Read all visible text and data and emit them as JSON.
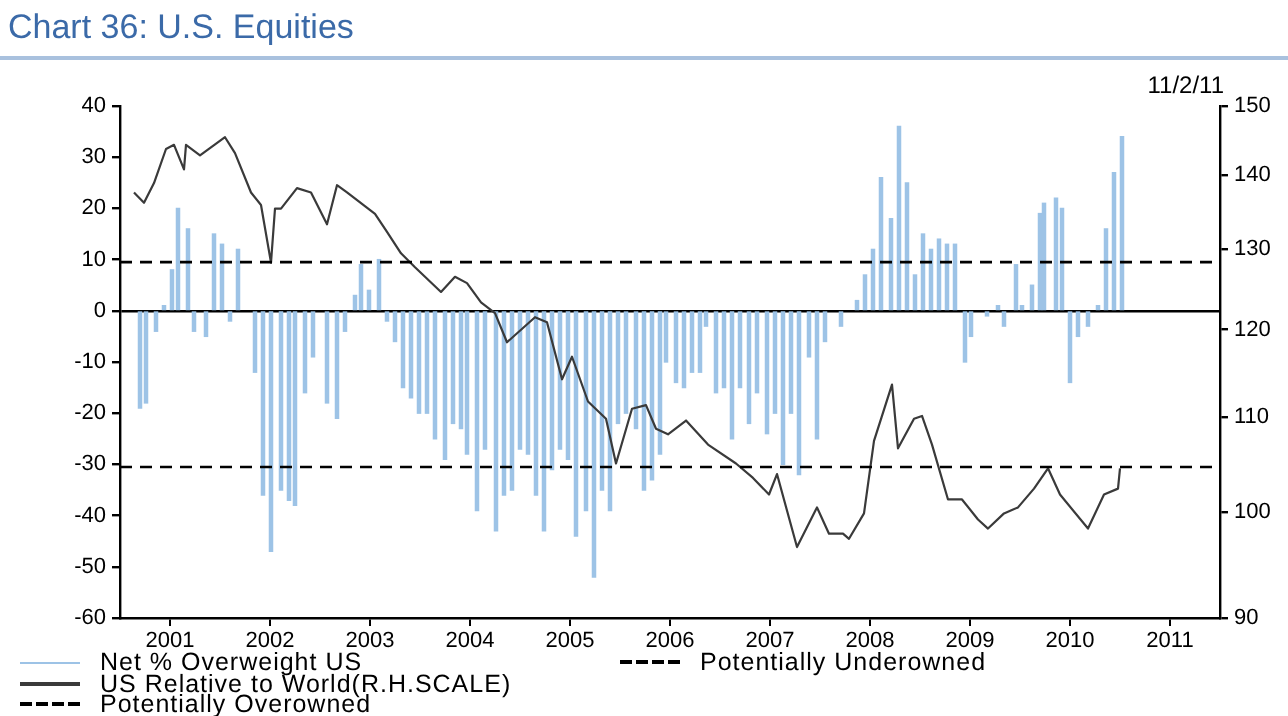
{
  "chart_data": {
    "type": "bar",
    "title": "Chart 36: U.S. Equities",
    "annotations": [
      "11/2/11"
    ],
    "xlim": [
      2001,
      2012
    ],
    "xticks": [
      {
        "value": 2001.5,
        "label": "2001"
      },
      {
        "value": 2002.5,
        "label": "2002"
      },
      {
        "value": 2003.5,
        "label": "2003"
      },
      {
        "value": 2004.5,
        "label": "2004"
      },
      {
        "value": 2005.5,
        "label": "2005"
      },
      {
        "value": 2006.5,
        "label": "2006"
      },
      {
        "value": 2007.5,
        "label": "2007"
      },
      {
        "value": 2008.5,
        "label": "2008"
      },
      {
        "value": 2009.5,
        "label": "2009"
      },
      {
        "value": 2010.5,
        "label": "2010"
      },
      {
        "value": 2011.5,
        "label": "2011"
      }
    ],
    "ylim": [
      -60,
      40
    ],
    "yticks": [
      -60,
      -50,
      -40,
      -30,
      -20,
      -10,
      0,
      10,
      20,
      30,
      40
    ],
    "y2lim": [
      90,
      150
    ],
    "y2ticks": [
      90,
      100,
      110,
      120,
      130,
      140,
      150
    ],
    "log": "y2",
    "grid": false,
    "legend": "bottom",
    "series": [
      {
        "name": "Net % Overweight US",
        "color": "#9dc3e6",
        "x": [
          2001.2,
          2001.26,
          2001.36,
          2001.44,
          2001.52,
          2001.58,
          2001.68,
          2001.74,
          2001.86,
          2001.94,
          2002.02,
          2002.1,
          2002.18,
          2002.35,
          2002.43,
          2002.51,
          2002.61,
          2002.69,
          2002.75,
          2002.85,
          2002.93,
          2003.07,
          2003.17,
          2003.25,
          2003.35,
          2003.41,
          2003.49,
          2003.59,
          2003.67,
          2003.75,
          2003.83,
          2003.91,
          2003.99,
          2004.07,
          2004.15,
          2004.25,
          2004.33,
          2004.41,
          2004.47,
          2004.57,
          2004.65,
          2004.76,
          2004.84,
          2004.92,
          2005.0,
          2005.08,
          2005.16,
          2005.24,
          2005.32,
          2005.4,
          2005.48,
          2005.56,
          2005.66,
          2005.74,
          2005.82,
          2005.9,
          2005.98,
          2006.06,
          2006.16,
          2006.24,
          2006.32,
          2006.4,
          2006.46,
          2006.56,
          2006.64,
          2006.72,
          2006.8,
          2006.86,
          2006.96,
          2007.04,
          2007.12,
          2007.2,
          2007.29,
          2007.37,
          2007.47,
          2007.55,
          2007.63,
          2007.71,
          2007.79,
          2007.89,
          2007.97,
          2008.05,
          2008.21,
          2008.37,
          2008.45,
          2008.53,
          2008.61,
          2008.71,
          2008.79,
          2008.87,
          2008.95,
          2009.03,
          2009.11,
          2009.19,
          2009.27,
          2009.35,
          2009.45,
          2009.51,
          2009.67,
          2009.78,
          2009.84,
          2009.96,
          2010.02,
          2010.12,
          2010.2,
          2010.24,
          2010.36,
          2010.42,
          2010.5,
          2010.58,
          2010.68,
          2010.78,
          2010.86,
          2010.94,
          2011.02
        ],
        "values": [
          -19,
          -18,
          -4,
          1,
          8,
          20,
          16,
          -4,
          -5,
          15,
          13,
          -2,
          12,
          -12,
          -36,
          -47,
          -35,
          -37,
          -38,
          -16,
          -9,
          -18,
          -21,
          -4,
          3,
          9,
          4,
          10,
          -2,
          -6,
          -15,
          -17,
          -20,
          -20,
          -25,
          -29,
          -22,
          -23,
          -28,
          -39,
          -27,
          -43,
          -36,
          -35,
          -27,
          -28,
          -36,
          -43,
          -31,
          -27,
          -29,
          -44,
          -39,
          -52,
          -35,
          -39,
          -22,
          -20,
          -23,
          -35,
          -33,
          -28,
          -10,
          -14,
          -15,
          -12,
          -12,
          -3,
          -16,
          -15,
          -25,
          -15,
          -22,
          -16,
          -24,
          -20,
          -30,
          -20,
          -32,
          -9,
          -25,
          -6,
          -3,
          2,
          7,
          12,
          26,
          18,
          36,
          25,
          7,
          15,
          12,
          14,
          13,
          13,
          -10,
          -5,
          -1,
          1,
          -3,
          9,
          1,
          5,
          19,
          21,
          22,
          20,
          -14,
          -5,
          -3,
          1,
          16,
          27,
          34
        ]
      },
      {
        "name": "US Relative to World(R.H.SCALE)",
        "type": "line",
        "axis": "y2",
        "color": "#3a3a3a",
        "x": [
          2001.14,
          2001.24,
          2001.34,
          2001.46,
          2001.54,
          2001.64,
          2001.66,
          2001.8,
          2002.05,
          2002.15,
          2002.31,
          2002.41,
          2002.51,
          2002.55,
          2002.61,
          2002.77,
          2002.91,
          2003.07,
          2003.17,
          2003.27,
          2003.55,
          2003.67,
          2003.81,
          2003.95,
          2004.21,
          2004.35,
          2004.47,
          2004.61,
          2004.75,
          2004.87,
          2005.15,
          2005.27,
          2005.42,
          2005.52,
          2005.68,
          2005.86,
          2005.96,
          2006.12,
          2006.26,
          2006.36,
          2006.48,
          2006.66,
          2006.88,
          2007.16,
          2007.33,
          2007.49,
          2007.57,
          2007.77,
          2007.97,
          2008.09,
          2008.23,
          2008.29,
          2008.44,
          2008.54,
          2008.62,
          2008.72,
          2008.78,
          2008.94,
          2009.02,
          2009.12,
          2009.28,
          2009.42,
          2009.58,
          2009.68,
          2009.84,
          2009.98,
          2010.14,
          2010.28,
          2010.4,
          2010.68,
          2010.84,
          2010.98,
          2011.0
        ],
        "values": [
          137.6,
          136.2,
          138.9,
          143.7,
          144.3,
          140.8,
          144.3,
          142.8,
          145.4,
          143.1,
          137.6,
          135.9,
          128.3,
          135.4,
          135.4,
          138.2,
          137.6,
          133.3,
          138.6,
          137.6,
          134.7,
          132.3,
          129.5,
          127.7,
          124.6,
          126.5,
          125.7,
          123.3,
          122,
          118.5,
          121.5,
          120.9,
          114.2,
          116.8,
          111.7,
          109.8,
          105,
          110.9,
          111.3,
          108.7,
          108.1,
          109.6,
          107,
          105,
          103.5,
          101.8,
          103.9,
          96.6,
          100.5,
          97.9,
          97.9,
          97.4,
          99.9,
          107.4,
          110.1,
          113.6,
          106.6,
          109.8,
          110.1,
          107,
          101.3,
          101.3,
          99.3,
          98.4,
          99.9,
          100.5,
          102.4,
          104.5,
          101.8,
          98.4,
          101.8,
          102.4,
          104.5
        ]
      }
    ],
    "ref_lines": [
      {
        "axis": "y",
        "value": -30.5,
        "label": "Potentially Underowned",
        "color": "#000000",
        "line_style": "dashed"
      },
      {
        "axis": "y",
        "value": 9.5,
        "label": "Potentially Overowned",
        "color": "#000000",
        "line_style": "dashed"
      }
    ]
  }
}
